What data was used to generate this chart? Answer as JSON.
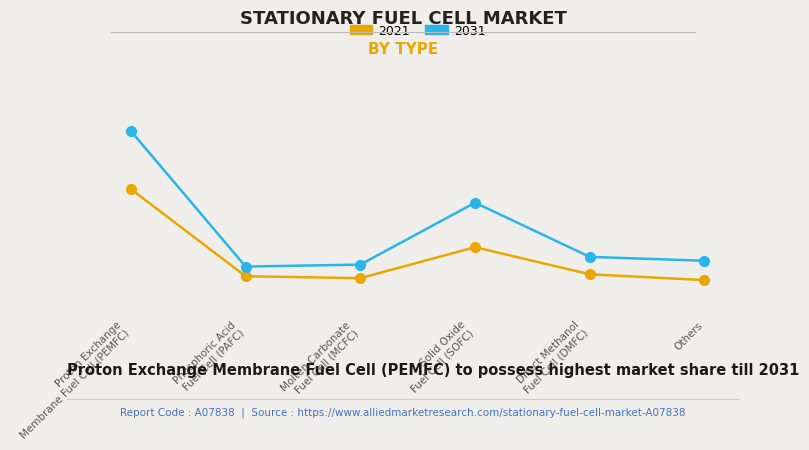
{
  "title": "STATIONARY FUEL CELL MARKET",
  "subtitle": "BY TYPE",
  "categories": [
    "Proton Exchange\nMembrane Fuel Cell (PEMFC)",
    "Phosphoric Acid\nFuel Cell (PAFC)",
    "Molten Carbonate\nFuel Cell (MCFC)",
    "Solid Oxide\nFuel Cell (SOFC)",
    "Direct Methanol\nFuel Cell (DMFC)",
    "Others"
  ],
  "series": [
    {
      "label": "2021",
      "values": [
        6.5,
        2.0,
        1.9,
        3.5,
        2.1,
        1.8
      ],
      "color": "#E8A800",
      "marker": "o"
    },
    {
      "label": "2031",
      "values": [
        9.5,
        2.5,
        2.6,
        5.8,
        3.0,
        2.8
      ],
      "color": "#29B5E8",
      "marker": "o"
    }
  ],
  "ylim": [
    0,
    11
  ],
  "background_color": "#F0EEEA",
  "plot_bg_color": "#F0EEEA",
  "grid_color": "#FFFFFF",
  "title_fontsize": 13,
  "subtitle_fontsize": 11,
  "subtitle_color": "#E8A800",
  "legend_fontsize": 9,
  "tick_fontsize": 7.5,
  "footer_text": "Proton Exchange Membrane Fuel Cell (PEMFC) to possess highest market share till 2031",
  "footer_fontsize": 10.5,
  "source_text": "Report Code : A07838  |  Source : https://www.alliedmarketresearch.com/stationary-fuel-cell-market-A07838",
  "source_color": "#4472C4",
  "source_fontsize": 7.5,
  "title_color": "#222222",
  "separator_color": "#BBBBBB",
  "footer_separator_color": "#CCCCCC"
}
